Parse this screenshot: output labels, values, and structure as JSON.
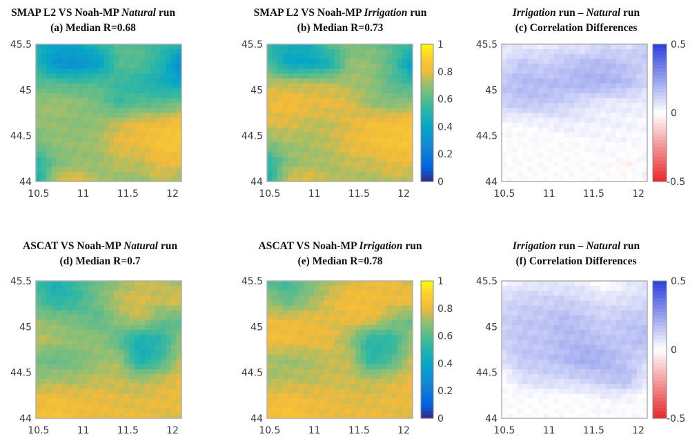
{
  "chart_data": [
    {
      "id": "a",
      "type": "heatmap",
      "title_line1": [
        {
          "text": "SMAP L2 VS Noah-MP ",
          "italic": false
        },
        {
          "text": "Natural",
          "italic": true
        },
        {
          "text": " run",
          "italic": false
        }
      ],
      "title_line2": "(a) Median R=0.68",
      "xlim": [
        10.47,
        12.1
      ],
      "ylim": [
        44,
        45.5
      ],
      "xticks": [
        "10.5",
        "11",
        "11.5",
        "12"
      ],
      "yticks": [
        "44",
        "44.5",
        "45",
        "45.5"
      ],
      "colormap": "parula",
      "clim": [
        0,
        1
      ],
      "colorbar": false,
      "grid_values": [
        [
          0.45,
          0.4,
          0.4,
          0.5,
          0.6,
          0.6,
          0.55,
          0.5
        ],
        [
          0.5,
          0.3,
          0.3,
          0.35,
          0.6,
          0.6,
          0.5,
          0.25
        ],
        [
          0.6,
          0.6,
          0.58,
          0.6,
          0.55,
          0.5,
          0.45,
          0.4
        ],
        [
          0.7,
          0.72,
          0.7,
          0.65,
          0.55,
          0.6,
          0.6,
          0.65
        ],
        [
          0.7,
          0.7,
          0.68,
          0.7,
          0.75,
          0.8,
          0.8,
          0.85
        ],
        [
          0.65,
          0.7,
          0.7,
          0.72,
          0.8,
          0.8,
          0.85,
          0.85
        ],
        [
          0.5,
          0.65,
          0.7,
          0.7,
          0.75,
          0.75,
          0.8,
          0.8
        ],
        [
          0.45,
          0.78,
          0.8,
          0.72,
          0.7,
          0.7,
          0.75,
          0.7
        ]
      ]
    },
    {
      "id": "b",
      "type": "heatmap",
      "title_line1": [
        {
          "text": "SMAP L2 VS Noah-MP ",
          "italic": false
        },
        {
          "text": "Irrigation",
          "italic": true
        },
        {
          "text": " run",
          "italic": false
        }
      ],
      "title_line2": "(b) Median R=0.73",
      "xlim": [
        10.47,
        12.1
      ],
      "ylim": [
        44,
        45.5
      ],
      "xticks": [
        "10.5",
        "11",
        "11.5",
        "12"
      ],
      "yticks": [
        "44",
        "44.5",
        "45",
        "45.5"
      ],
      "colormap": "parula",
      "clim": [
        0,
        1
      ],
      "colorbar": true,
      "colorbar_ticks": [
        "0",
        "0.2",
        "0.4",
        "0.6",
        "0.8",
        "1"
      ],
      "grid_values": [
        [
          0.5,
          0.45,
          0.45,
          0.6,
          0.65,
          0.65,
          0.6,
          0.55
        ],
        [
          0.6,
          0.4,
          0.4,
          0.45,
          0.7,
          0.7,
          0.6,
          0.35
        ],
        [
          0.75,
          0.75,
          0.75,
          0.75,
          0.72,
          0.7,
          0.6,
          0.55
        ],
        [
          0.8,
          0.82,
          0.8,
          0.8,
          0.78,
          0.7,
          0.68,
          0.7
        ],
        [
          0.78,
          0.78,
          0.75,
          0.75,
          0.78,
          0.82,
          0.82,
          0.85
        ],
        [
          0.68,
          0.72,
          0.72,
          0.75,
          0.8,
          0.82,
          0.85,
          0.85
        ],
        [
          0.5,
          0.68,
          0.72,
          0.72,
          0.76,
          0.76,
          0.8,
          0.8
        ],
        [
          0.45,
          0.78,
          0.8,
          0.74,
          0.72,
          0.72,
          0.75,
          0.72
        ]
      ]
    },
    {
      "id": "c",
      "type": "heatmap",
      "title_line1": [
        {
          "text": "Irrigation",
          "italic": true
        },
        {
          "text": " run – ",
          "italic": false
        },
        {
          "text": "Natural",
          "italic": true
        },
        {
          "text": " run",
          "italic": false
        }
      ],
      "title_line2": "(c) Correlation Differences",
      "xlim": [
        10.47,
        12.1
      ],
      "ylim": [
        44,
        45.5
      ],
      "xticks": [
        "10.5",
        "11",
        "11.5",
        "12"
      ],
      "yticks": [
        "44",
        "44.5",
        "45",
        "45.5"
      ],
      "colormap": "red-white-blue",
      "clim": [
        -0.5,
        0.5
      ],
      "colorbar": true,
      "colorbar_ticks": [
        "-0.5",
        "0",
        "0.5"
      ],
      "grid_values": [
        [
          0.05,
          0.05,
          0.05,
          0.08,
          0.05,
          0.1,
          0.08,
          0.15
        ],
        [
          0.08,
          0.15,
          0.12,
          0.15,
          0.18,
          0.18,
          0.15,
          0.12
        ],
        [
          0.15,
          0.18,
          0.18,
          0.18,
          0.2,
          0.2,
          0.18,
          0.1
        ],
        [
          0.12,
          0.15,
          0.15,
          0.12,
          0.08,
          0.05,
          0.05,
          0.05
        ],
        [
          0.02,
          0.02,
          0.03,
          0.05,
          0.04,
          0.03,
          0.03,
          0.02
        ],
        [
          0.0,
          0.0,
          0.0,
          0.0,
          0.01,
          0.02,
          0.02,
          0.0
        ],
        [
          0.0,
          0.0,
          0.0,
          0.0,
          0.0,
          0.01,
          -0.03,
          0.03
        ],
        [
          0.0,
          0.0,
          0.0,
          0.0,
          0.0,
          0.0,
          0.0,
          0.03
        ]
      ]
    },
    {
      "id": "d",
      "type": "heatmap",
      "title_line1": [
        {
          "text": "ASCAT VS Noah-MP ",
          "italic": false
        },
        {
          "text": "Natural",
          "italic": true
        },
        {
          "text": " run",
          "italic": false
        }
      ],
      "title_line2": "(d) Median R=0.7",
      "xlim": [
        10.47,
        12.1
      ],
      "ylim": [
        44,
        45.5
      ],
      "xticks": [
        "10.5",
        "11",
        "11.5",
        "12"
      ],
      "yticks": [
        "44",
        "44.5",
        "45",
        "45.5"
      ],
      "colormap": "parula",
      "clim": [
        0,
        1
      ],
      "colorbar": false,
      "grid_values": [
        [
          0.55,
          0.45,
          0.55,
          0.65,
          0.7,
          0.75,
          0.75,
          0.7
        ],
        [
          0.6,
          0.5,
          0.55,
          0.65,
          0.75,
          0.78,
          0.75,
          0.8
        ],
        [
          0.7,
          0.68,
          0.65,
          0.6,
          0.7,
          0.75,
          0.65,
          0.6
        ],
        [
          0.75,
          0.72,
          0.7,
          0.7,
          0.6,
          0.45,
          0.5,
          0.7
        ],
        [
          0.65,
          0.62,
          0.65,
          0.7,
          0.72,
          0.45,
          0.55,
          0.75
        ],
        [
          0.7,
          0.72,
          0.72,
          0.75,
          0.75,
          0.72,
          0.75,
          0.8
        ],
        [
          0.8,
          0.82,
          0.8,
          0.8,
          0.78,
          0.78,
          0.8,
          0.8
        ],
        [
          0.82,
          0.85,
          0.82,
          0.8,
          0.8,
          0.8,
          0.78,
          0.78
        ]
      ]
    },
    {
      "id": "e",
      "type": "heatmap",
      "title_line1": [
        {
          "text": "ASCAT VS Noah-MP ",
          "italic": false
        },
        {
          "text": "Irrigation",
          "italic": true
        },
        {
          "text": " run",
          "italic": false
        }
      ],
      "title_line2": "(e) Median R=0.78",
      "xlim": [
        10.47,
        12.1
      ],
      "ylim": [
        44,
        45.5
      ],
      "xticks": [
        "10.5",
        "11",
        "11.5",
        "12"
      ],
      "yticks": [
        "44",
        "44.5",
        "45",
        "45.5"
      ],
      "colormap": "parula",
      "clim": [
        0,
        1
      ],
      "colorbar": true,
      "colorbar_ticks": [
        "0",
        "0.2",
        "0.4",
        "0.6",
        "0.8",
        "1"
      ],
      "grid_values": [
        [
          0.6,
          0.55,
          0.65,
          0.72,
          0.78,
          0.8,
          0.8,
          0.75
        ],
        [
          0.7,
          0.62,
          0.7,
          0.78,
          0.82,
          0.82,
          0.8,
          0.82
        ],
        [
          0.8,
          0.8,
          0.8,
          0.78,
          0.8,
          0.8,
          0.7,
          0.62
        ],
        [
          0.82,
          0.82,
          0.8,
          0.8,
          0.7,
          0.5,
          0.52,
          0.72
        ],
        [
          0.72,
          0.7,
          0.72,
          0.75,
          0.75,
          0.5,
          0.58,
          0.76
        ],
        [
          0.72,
          0.74,
          0.74,
          0.76,
          0.76,
          0.74,
          0.76,
          0.8
        ],
        [
          0.8,
          0.82,
          0.8,
          0.8,
          0.78,
          0.78,
          0.8,
          0.8
        ],
        [
          0.82,
          0.85,
          0.82,
          0.8,
          0.8,
          0.8,
          0.78,
          0.78
        ]
      ]
    },
    {
      "id": "f",
      "type": "heatmap",
      "title_line1": [
        {
          "text": "Irrigation",
          "italic": true
        },
        {
          "text": " run – ",
          "italic": false
        },
        {
          "text": "Natural",
          "italic": true
        },
        {
          "text": " run",
          "italic": false
        }
      ],
      "title_line2": "(f) Correlation Differences",
      "xlim": [
        10.47,
        12.1
      ],
      "ylim": [
        44,
        45.5
      ],
      "xticks": [
        "10.5",
        "11",
        "11.5",
        "12"
      ],
      "yticks": [
        "44",
        "44.5",
        "45",
        "45.5"
      ],
      "colormap": "red-white-blue",
      "clim": [
        -0.5,
        0.5
      ],
      "colorbar": true,
      "colorbar_ticks": [
        "-0.5",
        "0",
        "0.5"
      ],
      "grid_values": [
        [
          0.02,
          0.05,
          0.05,
          0.05,
          0.04,
          -0.02,
          0.04,
          0.06
        ],
        [
          0.1,
          0.12,
          0.12,
          0.12,
          0.1,
          0.08,
          0.08,
          0.1
        ],
        [
          0.12,
          0.15,
          0.15,
          0.18,
          0.15,
          0.12,
          0.15,
          0.15
        ],
        [
          0.12,
          0.15,
          0.15,
          0.18,
          0.18,
          0.15,
          0.15,
          0.18
        ],
        [
          0.08,
          0.15,
          0.15,
          0.18,
          0.22,
          0.2,
          0.15,
          0.1
        ],
        [
          0.0,
          0.08,
          0.1,
          0.1,
          0.12,
          0.15,
          0.18,
          0.05
        ],
        [
          0.0,
          0.0,
          0.0,
          0.0,
          0.0,
          0.03,
          0.02,
          0.0
        ],
        [
          0.0,
          0.0,
          0.0,
          0.0,
          0.0,
          0.0,
          0.0,
          0.0
        ]
      ]
    }
  ]
}
